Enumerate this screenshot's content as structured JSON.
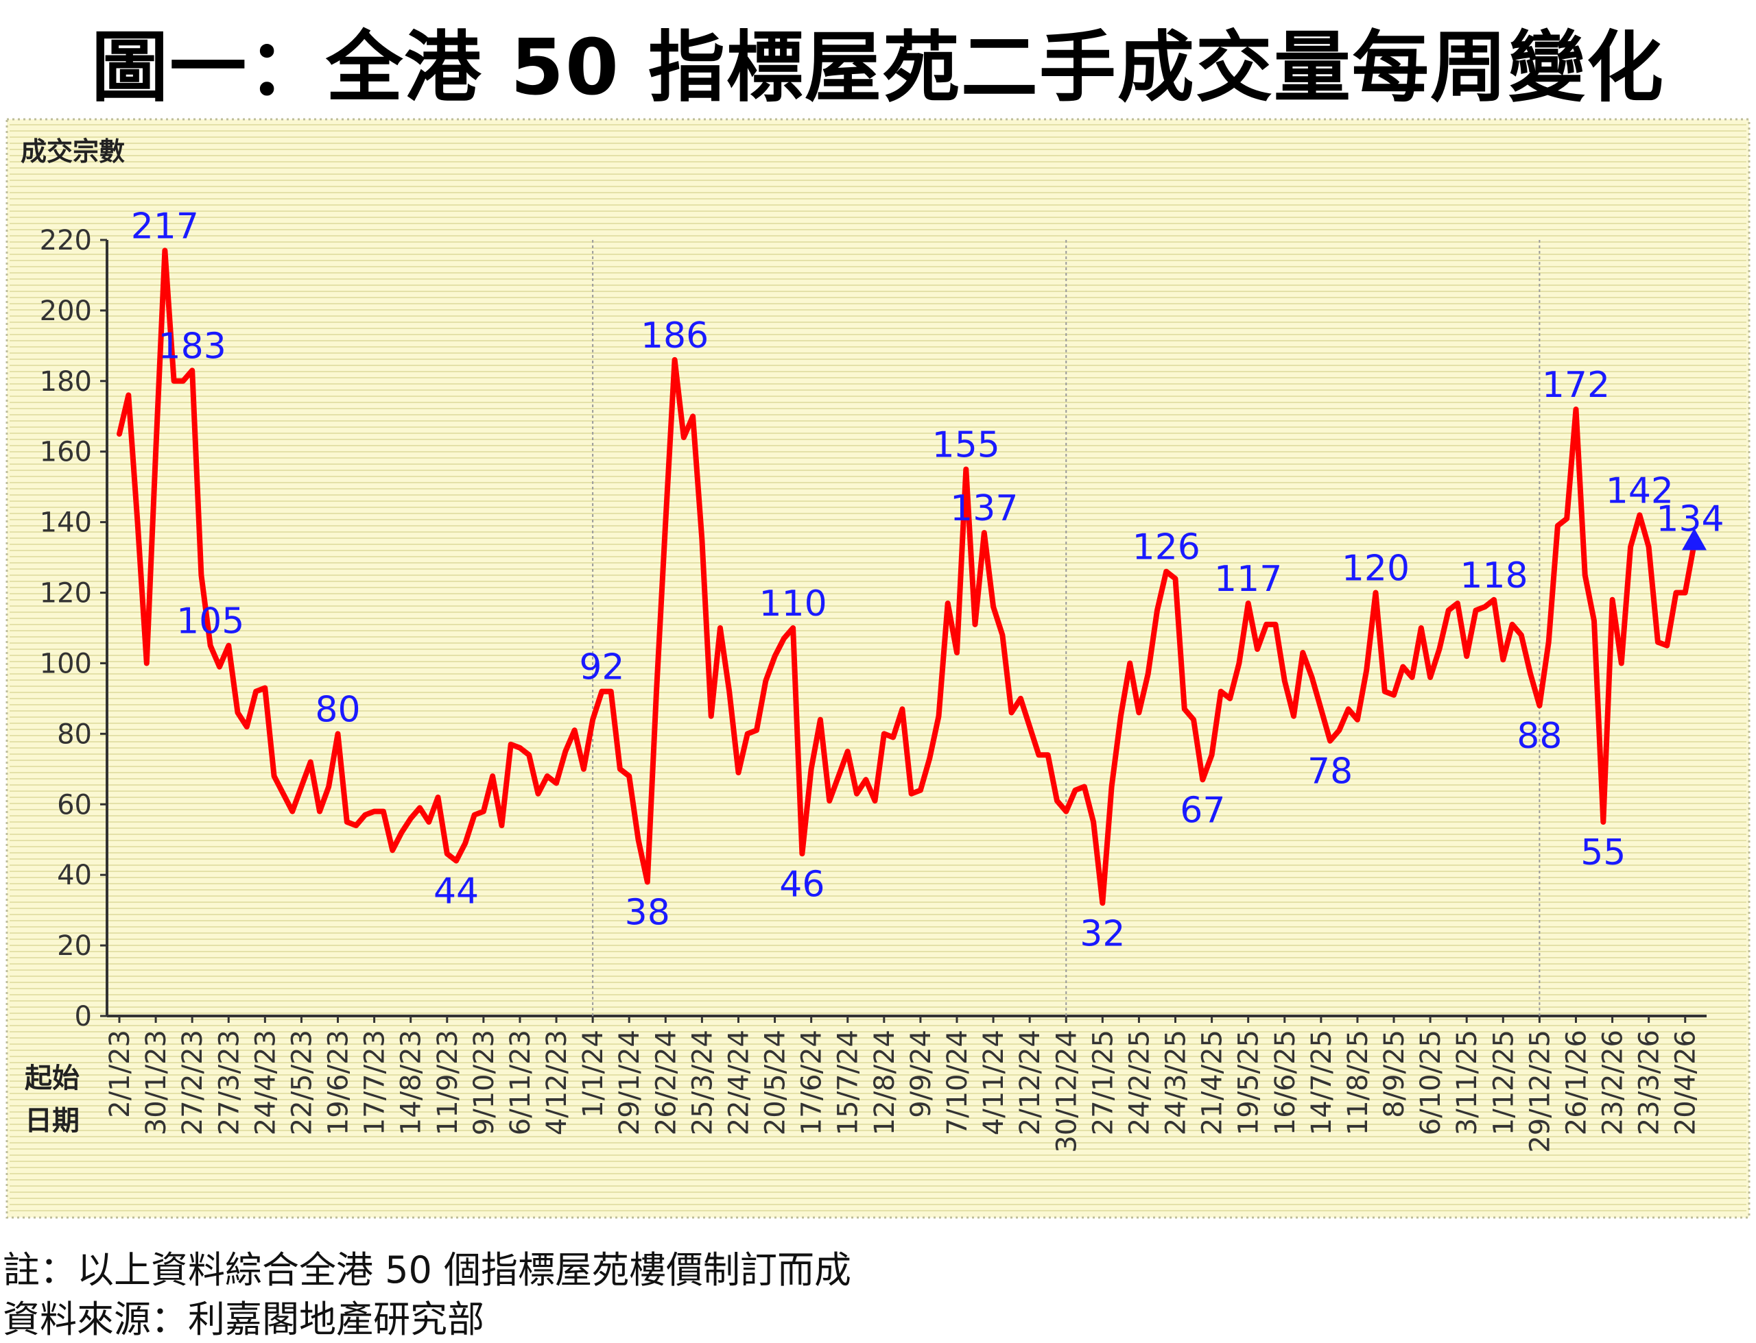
{
  "title": "圖一：全港 50 指標屋苑二手成交量每周變化",
  "notes": {
    "note": "註：以上資料綜合全港 50 個指標屋苑樓價制訂而成",
    "source": "資料來源：利嘉閣地產研究部"
  },
  "chart_data": {
    "type": "line",
    "title": "",
    "ylabel": "成交宗數",
    "xlabel_lines": [
      "起始",
      "日期"
    ],
    "ylim": [
      0,
      220
    ],
    "yticks": [
      0,
      20,
      40,
      60,
      80,
      100,
      120,
      140,
      160,
      180,
      200,
      220
    ],
    "grid": "horizontal stripes",
    "year_dividers": [
      "1/1/24",
      "30/12/24",
      "29/12/25"
    ],
    "x_tick_labels": [
      "2/1/23",
      "30/1/23",
      "27/2/23",
      "27/3/23",
      "24/4/23",
      "22/5/23",
      "19/6/23",
      "17/7/23",
      "14/8/23",
      "11/9/23",
      "9/10/23",
      "6/11/23",
      "4/12/23",
      "1/1/24",
      "29/1/24",
      "26/2/24",
      "25/3/24",
      "22/4/24",
      "20/5/24",
      "17/6/24",
      "15/7/24",
      "12/8/24",
      "9/9/24",
      "7/10/24",
      "4/11/24",
      "2/12/24",
      "30/12/24",
      "27/1/25",
      "24/2/25",
      "24/3/25",
      "21/4/25",
      "19/5/25",
      "16/6/25",
      "14/7/25",
      "11/8/25",
      "8/9/25",
      "6/10/25",
      "3/11/25",
      "1/12/25",
      "29/12/25",
      "26/1/26",
      "23/2/26",
      "23/3/26",
      "20/4/26"
    ],
    "series": [
      {
        "color": "#ff0000",
        "values": [
          165,
          176,
          140,
          100,
          160,
          217,
          180,
          180,
          183,
          125,
          105,
          99,
          105,
          86,
          82,
          92,
          93,
          68,
          63,
          58,
          65,
          72,
          58,
          65,
          80,
          55,
          54,
          57,
          58,
          58,
          47,
          52,
          56,
          59,
          55,
          62,
          46,
          44,
          49,
          57,
          58,
          68,
          54,
          77,
          76,
          74,
          63,
          68,
          66,
          75,
          81,
          70,
          84,
          92,
          92,
          70,
          68,
          50,
          38,
          92,
          140,
          186,
          164,
          170,
          135,
          85,
          110,
          92,
          69,
          80,
          81,
          95,
          102,
          107,
          110,
          46,
          70,
          84,
          61,
          68,
          75,
          63,
          67,
          61,
          80,
          79,
          87,
          63,
          64,
          73,
          85,
          117,
          103,
          155,
          111,
          137,
          116,
          108,
          86,
          90,
          82,
          74,
          74,
          61,
          58,
          64,
          65,
          55,
          32,
          65,
          85,
          100,
          86,
          97,
          115,
          126,
          124,
          87,
          84,
          67,
          74,
          92,
          90,
          100,
          117,
          104,
          111,
          111,
          95,
          85,
          103,
          96,
          87,
          78,
          81,
          87,
          84,
          98,
          120,
          92,
          91,
          99,
          96,
          110,
          96,
          104,
          115,
          117,
          102,
          115,
          116,
          118,
          101,
          111,
          108,
          97,
          88,
          106,
          139,
          141,
          172,
          125,
          112,
          55,
          118,
          100,
          133,
          142,
          133,
          106,
          105,
          120,
          120,
          134
        ]
      }
    ],
    "point_labels": [
      {
        "index": 5,
        "text": "217"
      },
      {
        "index": 8,
        "text": "183"
      },
      {
        "index": 10,
        "text": "105"
      },
      {
        "index": 24,
        "text": "80"
      },
      {
        "index": 37,
        "text": "44"
      },
      {
        "index": 53,
        "text": "92"
      },
      {
        "index": 58,
        "text": "38"
      },
      {
        "index": 61,
        "text": "186"
      },
      {
        "index": 74,
        "text": "110"
      },
      {
        "index": 75,
        "text": "46"
      },
      {
        "index": 93,
        "text": "155"
      },
      {
        "index": 95,
        "text": "137"
      },
      {
        "index": 108,
        "text": "32"
      },
      {
        "index": 115,
        "text": "126"
      },
      {
        "index": 119,
        "text": "67"
      },
      {
        "index": 124,
        "text": "117"
      },
      {
        "index": 133,
        "text": "78"
      },
      {
        "index": 138,
        "text": "120"
      },
      {
        "index": 151,
        "text": "118"
      },
      {
        "index": 156,
        "text": "88"
      },
      {
        "index": 160,
        "text": "172"
      },
      {
        "index": 163,
        "text": "55"
      },
      {
        "index": 167,
        "text": "142"
      },
      {
        "index": 173,
        "text": "134"
      }
    ],
    "label_color": "#1a1aff",
    "end_marker": "triangle",
    "end_marker_color": "#1a1aff",
    "background": "#fbf8d2"
  }
}
